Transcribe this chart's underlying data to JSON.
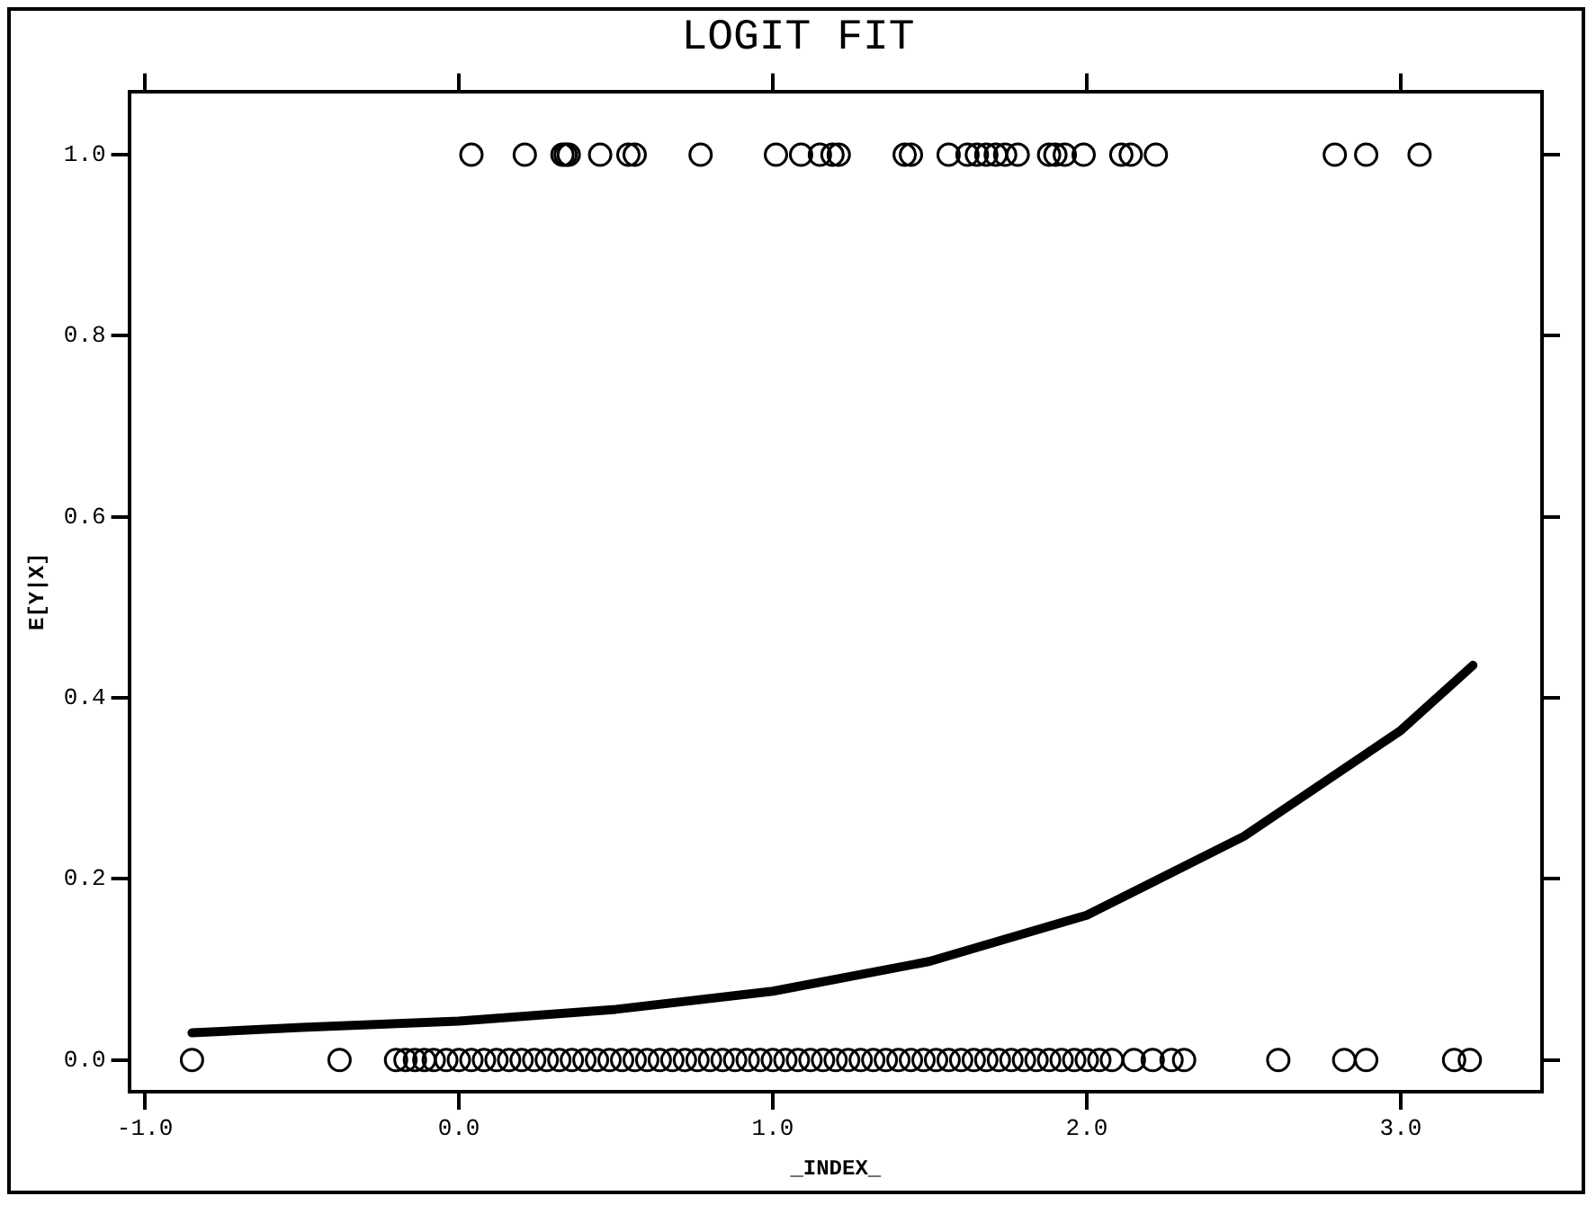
{
  "chart_data": {
    "type": "scatter",
    "title": "LOGIT FIT",
    "xlabel": "_INDEX_",
    "ylabel": "E[Y|X]",
    "xlim": [
      -1.05,
      3.45
    ],
    "xticks": [
      {
        "value": -1,
        "label": "-1.0"
      },
      {
        "value": 0,
        "label": "0.0"
      },
      {
        "value": 1,
        "label": "1.0"
      },
      {
        "value": 2,
        "label": "2.0"
      },
      {
        "value": 3,
        "label": "3.0"
      }
    ],
    "ylim": [
      -0.035,
      1.07
    ],
    "yticks": [
      {
        "value": 0,
        "label": "0.0"
      },
      {
        "value": 0.2,
        "label": "0.2"
      },
      {
        "value": 0.4,
        "label": "0.4"
      },
      {
        "value": 0.6,
        "label": "0.6"
      },
      {
        "value": 0.8,
        "label": "0.8"
      },
      {
        "value": 1,
        "label": "1.0"
      }
    ],
    "grid": false,
    "legend": false,
    "marker": "circle",
    "series": [
      {
        "type": "scatter",
        "color": "#000000",
        "x": [
          0.04,
          0.21,
          0.33,
          0.34,
          0.35,
          0.45,
          0.54,
          0.56,
          0.77,
          1.01,
          1.09,
          1.15,
          1.19,
          1.21,
          1.42,
          1.44,
          1.56,
          1.62,
          1.65,
          1.68,
          1.71,
          1.74,
          1.78,
          1.88,
          1.9,
          1.93,
          1.99,
          2.11,
          2.14,
          2.22,
          2.79,
          2.89,
          3.06
        ],
        "values": [
          1,
          1,
          1,
          1,
          1,
          1,
          1,
          1,
          1,
          1,
          1,
          1,
          1,
          1,
          1,
          1,
          1,
          1,
          1,
          1,
          1,
          1,
          1,
          1,
          1,
          1,
          1,
          1,
          1,
          1,
          1,
          1,
          1
        ]
      },
      {
        "type": "scatter",
        "color": "#000000",
        "x": [
          -0.85,
          -0.38,
          -0.2,
          -0.17,
          -0.14,
          -0.11,
          -0.08,
          -0.04,
          0,
          0.04,
          0.08,
          0.12,
          0.16,
          0.2,
          0.24,
          0.28,
          0.32,
          0.36,
          0.4,
          0.44,
          0.48,
          0.52,
          0.56,
          0.6,
          0.64,
          0.68,
          0.72,
          0.76,
          0.8,
          0.84,
          0.88,
          0.92,
          0.96,
          1,
          1.04,
          1.08,
          1.12,
          1.16,
          1.2,
          1.24,
          1.28,
          1.32,
          1.36,
          1.4,
          1.44,
          1.48,
          1.52,
          1.56,
          1.6,
          1.64,
          1.68,
          1.72,
          1.76,
          1.8,
          1.84,
          1.88,
          1.92,
          1.96,
          2,
          2.04,
          2.08,
          2.15,
          2.21,
          2.27,
          2.31,
          2.61,
          2.82,
          2.89,
          3.17,
          3.22
        ],
        "values": [
          0,
          0,
          0,
          0,
          0,
          0,
          0,
          0,
          0,
          0,
          0,
          0,
          0,
          0,
          0,
          0,
          0,
          0,
          0,
          0,
          0,
          0,
          0,
          0,
          0,
          0,
          0,
          0,
          0,
          0,
          0,
          0,
          0,
          0,
          0,
          0,
          0,
          0,
          0,
          0,
          0,
          0,
          0,
          0,
          0,
          0,
          0,
          0,
          0,
          0,
          0,
          0,
          0,
          0,
          0,
          0,
          0,
          0,
          0,
          0,
          0,
          0,
          0,
          0,
          0,
          0,
          0,
          0,
          0,
          0
        ]
      },
      {
        "type": "line",
        "color": "#000000",
        "marker": "none",
        "line_style": "solid",
        "x": [
          -0.85,
          -0.5,
          0,
          0.5,
          1,
          1.5,
          2,
          2.5,
          3,
          3.23
        ],
        "values": [
          0.03,
          0.036,
          0.043,
          0.056,
          0.076,
          0.109,
          0.16,
          0.247,
          0.364,
          0.436
        ]
      }
    ]
  }
}
